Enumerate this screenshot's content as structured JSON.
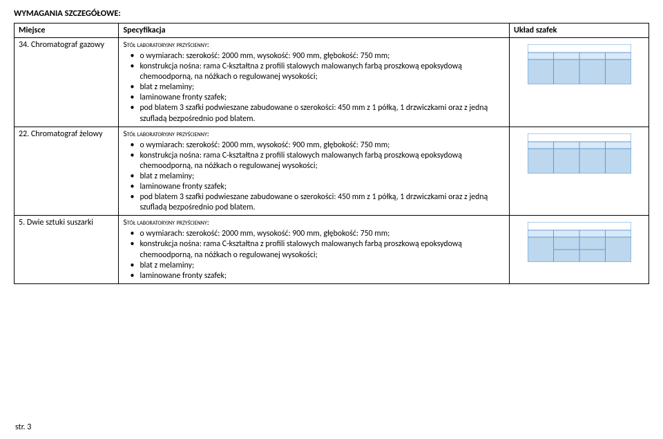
{
  "heading": "WYMAGANIA SZCZEGÓŁOWE:",
  "headers": {
    "c1": "Miejsce",
    "c2": "Specyfikacja",
    "c3": "Układ szafek"
  },
  "rows": [
    {
      "place": "34. Chromatograf gazowy",
      "spec_title": "Stół laboratoryjny przyścienny:",
      "bullets": [
        "o wymiarach: szerokość: 2000 mm, wysokość: 900 mm, głębokość: 750 mm;",
        "konstrukcja nośna: rama C-kształtna z profili stalowych malowanych farbą proszkową epoksydową chemoodporną, na nóżkach o regulowanej wysokości;",
        "blat z melaminy;",
        "laminowane fronty szafek;",
        "pod blatem 3 szafki podwieszane zabudowane o szerokości: 450 mm z 1 półką, 1 drzwiczkami oraz z jedną szufladą bezpośrednio pod blatem."
      ],
      "cabinet": "typeA"
    },
    {
      "place": "22. Chromatograf żelowy",
      "spec_title": "Stół laboratoryjny przyścienny:",
      "bullets": [
        "o wymiarach: szerokość: 2000 mm, wysokość: 900 mm, głębokość: 750 mm;",
        "konstrukcja nośna: rama C-kształtna z profili stalowych malowanych farbą proszkową epoksydową chemoodporną, na nóżkach o regulowanej wysokości;",
        "blat z melaminy;",
        "laminowane fronty szafek;",
        "pod blatem 3 szafki podwieszane zabudowane o szerokości: 450 mm z 1 półką, 1 drzwiczkami oraz z jedną szufladą bezpośrednio pod blatem."
      ],
      "cabinet": "typeA"
    },
    {
      "place": "5. Dwie sztuki suszarki",
      "spec_title": "Stół laboratoryjny przyścienny:",
      "bullets": [
        "o wymiarach: szerokość: 2000 mm, wysokość: 900 mm, głębokość: 750 mm;",
        "konstrukcja nośna: rama C-kształtna z profili stalowych malowanych farbą proszkową epoksydową chemoodporną, na nóżkach o regulowanej wysokości;",
        "blat z melaminy;",
        "laminowane fronty szafek;"
      ],
      "cabinet": "typeB"
    }
  ],
  "footer": "str. 3",
  "colors": {
    "border": "#5b9bd5",
    "top_fill": "#ffffff",
    "drawer_fill": "#dae9f7",
    "door_fill": "#bdd7ee"
  },
  "cab_dims": {
    "w": 150,
    "h": 58
  }
}
